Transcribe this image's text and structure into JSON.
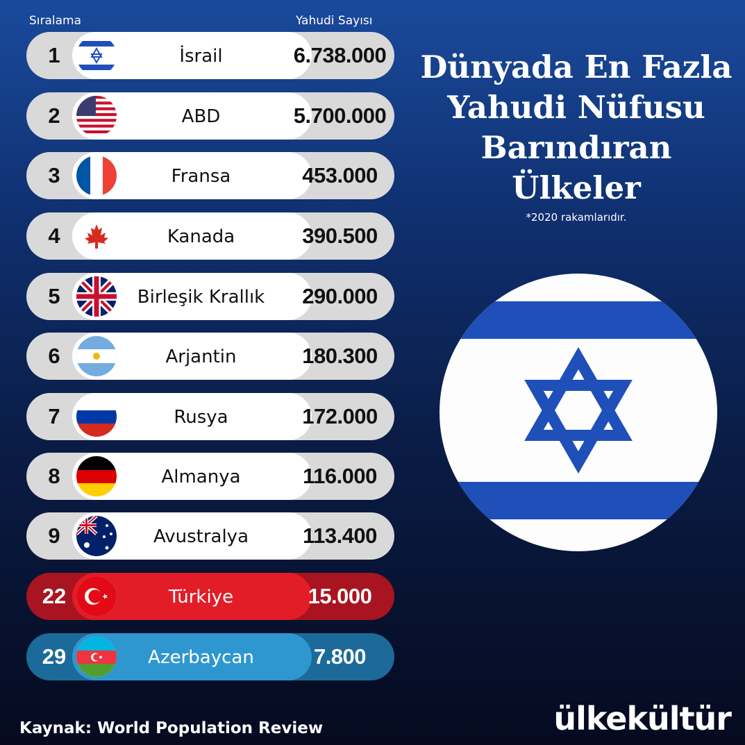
{
  "header": {
    "rank_label": "Sıralama",
    "count_label": "Yahudi Sayısı"
  },
  "title": "Dünyada En Fazla Yahudi Nüfusu Barındıran Ülkeler",
  "note": "*2020 rakamlarıdır.",
  "source": "Kaynak: World Population Review",
  "brand": "ülkekültür",
  "colors": {
    "turkey_row": "#e21d27",
    "azerbaijan_row": "#2e97d0",
    "israel_blue": "#1f4fb8"
  },
  "chart_data": {
    "type": "table",
    "columns": [
      "Sıralama",
      "",
      "Yahudi Sayısı"
    ],
    "rows": [
      {
        "rank": "1",
        "country": "İsrail",
        "value": "6.738.000",
        "flag": "israel-flag-icon"
      },
      {
        "rank": "2",
        "country": "ABD",
        "value": "5.700.000",
        "flag": "usa-flag-icon"
      },
      {
        "rank": "3",
        "country": "Fransa",
        "value": "453.000",
        "flag": "france-flag-icon"
      },
      {
        "rank": "4",
        "country": "Kanada",
        "value": "390.500",
        "flag": "canada-flag-icon"
      },
      {
        "rank": "5",
        "country": "Birleşik Krallık",
        "value": "290.000",
        "flag": "uk-flag-icon"
      },
      {
        "rank": "6",
        "country": "Arjantin",
        "value": "180.300",
        "flag": "argentina-flag-icon"
      },
      {
        "rank": "7",
        "country": "Rusya",
        "value": "172.000",
        "flag": "russia-flag-icon"
      },
      {
        "rank": "8",
        "country": "Almanya",
        "value": "116.000",
        "flag": "germany-flag-icon"
      },
      {
        "rank": "9",
        "country": "Avustralya",
        "value": "113.400",
        "flag": "australia-flag-icon"
      },
      {
        "rank": "22",
        "country": "Türkiye",
        "value": "15.000",
        "flag": "turkey-flag-icon"
      },
      {
        "rank": "29",
        "country": "Azerbaycan",
        "value": "7.800",
        "flag": "azerbaijan-flag-icon"
      }
    ]
  }
}
